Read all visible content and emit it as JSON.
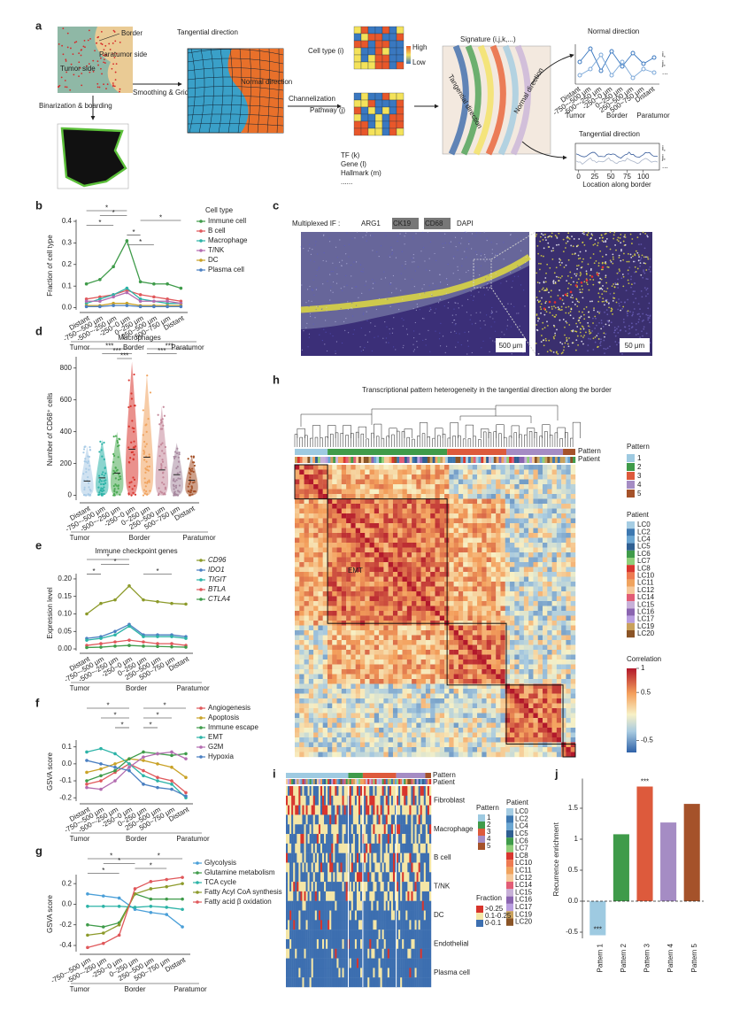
{
  "panel_a": {
    "label": "a",
    "border": "Border",
    "paratumor_side": "Paratumor side",
    "tumor_side": "Tumor side",
    "binarization": "Binarization & boarding",
    "smoothing": "Smoothing & Gridding",
    "tangential": "Tangential direction",
    "normal": "Normal direction",
    "channelization": "Channelization",
    "cell_type": "Cell type (i)",
    "high": "High",
    "low": "Low",
    "pathway": "Pathway (j)",
    "others": [
      "TF (k)",
      "Gene (l)",
      "Hallmark (m)",
      "......"
    ],
    "signature": "Signature (i,j,k,...)",
    "sig_tangential": "Tangential direction",
    "sig_normal": "Normal direction",
    "normal_title": "Normal direction",
    "normal_categories": [
      "Distant",
      "-750~-500 μm",
      "-500~-250 μm",
      "-250~0 μm",
      "0~250 μm",
      "250~500 μm",
      "500~750 μm",
      "Distant"
    ],
    "normal_groups": [
      "Tumor",
      "Border",
      "Paratumor"
    ],
    "normal_legend": [
      "i,",
      "j,",
      "..."
    ],
    "tangential_title": "Tangential direction",
    "tangential_xlim": [
      -5,
      125
    ],
    "tangential_xticks": [
      0,
      25,
      50,
      75,
      100
    ],
    "tangential_xlabel": "Location along border",
    "tangential_legend": [
      "i,",
      "j,",
      "..."
    ]
  },
  "panel_c": {
    "label": "c",
    "prefix": "Multiplexed IF :",
    "stains": [
      {
        "name": "ARG1",
        "color": "#9b4f96"
      },
      {
        "name": "CK19",
        "color": "#ffffff"
      },
      {
        "name": "CD68",
        "color": "#e8e23a"
      },
      {
        "name": "DAPI",
        "color": "#3a4fb8"
      }
    ],
    "scale_main": "500 μm",
    "scale_zoom": "50 μm"
  },
  "panel_h": {
    "label": "h",
    "title": "Transcriptional pattern heterogeneity in the tangential direction along the border",
    "row_pattern": "Pattern",
    "row_patient": "Patient",
    "block_label": "EMT",
    "pattern_title": "Pattern",
    "patterns": [
      "1",
      "2",
      "3",
      "4",
      "5"
    ],
    "pattern_colors": [
      "#9ecae1",
      "#3f9b4a",
      "#dd5a3c",
      "#a58cc4",
      "#a5522a"
    ],
    "patient_title": "Patient",
    "patients": [
      "LC0",
      "LC2",
      "LC4",
      "LC5",
      "LC6",
      "LC7",
      "LC8",
      "LC10",
      "LC11",
      "LC12",
      "LC14",
      "LC15",
      "LC16",
      "LC17",
      "LC19",
      "LC20"
    ],
    "patient_colors": [
      "#a6cde3",
      "#3d78b0",
      "#6aa6d2",
      "#2f5f92",
      "#3f9b4a",
      "#8fcf7a",
      "#d9362f",
      "#ee7b52",
      "#f0a35e",
      "#f6c99a",
      "#e25d76",
      "#c7b0d8",
      "#8a64b0",
      "#b99ee0",
      "#c9a15c",
      "#8a5426"
    ],
    "colorbar_title": "Correlation",
    "colorbar_lim": [
      -0.75,
      1
    ],
    "colorbar_ticks": [
      1,
      0.5,
      -0.5
    ]
  },
  "panel_i": {
    "label": "i",
    "row_pattern": "Pattern",
    "row_patient": "Patient",
    "rows": [
      "Fibroblast",
      "Macrophage",
      "B cell",
      "T/NK",
      "DC",
      "Endothelial",
      "Plasma cell"
    ],
    "pattern_title": "Pattern",
    "patterns": [
      "1",
      "2",
      "3",
      "4",
      "5"
    ],
    "pattern_colors": [
      "#9ecae1",
      "#3f9b4a",
      "#dd5a3c",
      "#a58cc4",
      "#a5522a"
    ],
    "patient_title": "Patient",
    "patients": [
      "LC0",
      "LC2",
      "LC4",
      "LC5",
      "LC6",
      "LC7",
      "LC8",
      "LC10",
      "LC11",
      "LC12",
      "LC14",
      "LC15",
      "LC16",
      "LC17",
      "LC19",
      "LC20"
    ],
    "patient_colors": [
      "#a6cde3",
      "#3d78b0",
      "#6aa6d2",
      "#2f5f92",
      "#3f9b4a",
      "#8fcf7a",
      "#d9362f",
      "#ee7b52",
      "#f0a35e",
      "#f6c99a",
      "#e25d76",
      "#c7b0d8",
      "#8a64b0",
      "#b99ee0",
      "#c9a15c",
      "#8a5426"
    ],
    "fraction_title": "Fraction",
    "fractions": [
      ">0.25",
      "0.1-0.25",
      "0-0.1"
    ],
    "fraction_colors": [
      "#d7342c",
      "#f4e6a6",
      "#3d6fb0"
    ]
  },
  "chart_data": [
    {
      "type": "line",
      "label": "b",
      "ylabel": "Fraction of cell type",
      "legend_title": "Cell type",
      "categories": [
        "Distant",
        "-750~-500 μm",
        "-500~-250 μm",
        "-250~0 μm",
        "0~250 μm",
        "250~500 μm",
        "500~750 μm",
        "Distant"
      ],
      "groups": [
        "Tumor",
        "Border",
        "Paratumor"
      ],
      "series": [
        {
          "name": "Immune cell",
          "color": "#3f9b4a",
          "values": [
            0.11,
            0.13,
            0.19,
            0.31,
            0.12,
            0.11,
            0.11,
            0.09
          ]
        },
        {
          "name": "B cell",
          "color": "#e0585b",
          "values": [
            0.04,
            0.05,
            0.06,
            0.08,
            0.06,
            0.05,
            0.04,
            0.03
          ]
        },
        {
          "name": "Macrophage",
          "color": "#2cb3a7",
          "values": [
            0.02,
            0.04,
            0.06,
            0.09,
            0.04,
            0.03,
            0.02,
            0.02
          ]
        },
        {
          "name": "T/NK",
          "color": "#b36cb0",
          "values": [
            0.03,
            0.03,
            0.05,
            0.07,
            0.03,
            0.03,
            0.03,
            0.02
          ]
        },
        {
          "name": "DC",
          "color": "#c9a227",
          "values": [
            0.01,
            0.01,
            0.02,
            0.02,
            0.01,
            0.01,
            0.01,
            0.01
          ]
        },
        {
          "name": "Plasma cell",
          "color": "#4a7fc1",
          "values": [
            0.005,
            0.005,
            0.01,
            0.01,
            0.005,
            0.005,
            0.005,
            0.005
          ]
        }
      ],
      "ylim": [
        -0.01,
        0.4
      ],
      "yticks": [
        {
          "value": 0,
          "label": "0.0"
        },
        0.1,
        0.2,
        0.3,
        0.4
      ],
      "annotations": [
        "*",
        "*",
        "*",
        "*",
        "*",
        "*"
      ]
    },
    {
      "type": "violin",
      "label": "d",
      "title": "Macrophages",
      "ylabel": "Number of CD68⁺ cells",
      "categories": [
        "Distant",
        "-750~-500 μm",
        "-500~-250 μm",
        "-250~0 μm",
        "0~250 μm",
        "250~500 μm",
        "500~750 μm",
        "Distant"
      ],
      "groups": [
        "Tumor",
        "Border",
        "Paratumor"
      ],
      "colors": [
        "#a9cbe6",
        "#2cb3a7",
        "#4dab55",
        "#d9362f",
        "#f0a35e",
        "#c4889a",
        "#a88aa0",
        "#a5522a"
      ],
      "values": [
        90,
        110,
        140,
        290,
        240,
        160,
        130,
        95
      ],
      "maxima": [
        310,
        350,
        400,
        840,
        760,
        560,
        330,
        250
      ],
      "ylim": [
        -30,
        860
      ],
      "yticks": [
        0,
        200,
        400,
        600,
        800
      ],
      "annotations": [
        "***",
        "***",
        "***",
        "***",
        "***"
      ]
    },
    {
      "type": "line",
      "label": "e",
      "title": "Immune checkpoint genes",
      "ylabel": "Expression level",
      "categories": [
        "Distant",
        "-750~-500 μm",
        "-500~-250 μm",
        "-250~0 μm",
        "0~250 μm",
        "250~500 μm",
        "500~750 μm",
        "Distant"
      ],
      "groups": [
        "Tumor",
        "Border",
        "Paratumor"
      ],
      "series": [
        {
          "name": "CD96",
          "color": "#8c9a2a",
          "values": [
            0.1,
            0.13,
            0.14,
            0.18,
            0.14,
            0.135,
            0.13,
            0.128
          ]
        },
        {
          "name": "IDO1",
          "color": "#4a7fc1",
          "values": [
            0.03,
            0.035,
            0.05,
            0.07,
            0.04,
            0.04,
            0.04,
            0.035
          ]
        },
        {
          "name": "TIGIT",
          "color": "#2cb3a7",
          "values": [
            0.025,
            0.03,
            0.04,
            0.065,
            0.035,
            0.035,
            0.035,
            0.03
          ]
        },
        {
          "name": "BTLA",
          "color": "#e0585b",
          "values": [
            0.01,
            0.015,
            0.02,
            0.025,
            0.02,
            0.015,
            0.015,
            0.01
          ]
        },
        {
          "name": "CTLA4",
          "color": "#3f9b4a",
          "values": [
            0.004,
            0.005,
            0.008,
            0.01,
            0.008,
            0.007,
            0.006,
            0.005
          ]
        }
      ],
      "ylim": [
        -0.005,
        0.21
      ],
      "yticks": [
        {
          "value": 0,
          "label": "0.00"
        },
        {
          "value": 0.05,
          "label": "0.05"
        },
        {
          "value": 0.1,
          "label": "0.10"
        },
        {
          "value": 0.15,
          "label": "0.15"
        },
        {
          "value": 0.2,
          "label": "0.20"
        }
      ],
      "annotations": [
        "*",
        "*",
        "*",
        "*"
      ]
    },
    {
      "type": "line",
      "label": "f",
      "ylabel": "GSVA score",
      "categories": [
        "Distant",
        "-750~-500 μm",
        "-500~-250 μm",
        "-250~0 μm",
        "0~250 μm",
        "250~500 μm",
        "500~750 μm",
        "Distant"
      ],
      "groups": [
        "Tumor",
        "Border",
        "Paratumor"
      ],
      "series": [
        {
          "name": "Angiogenesis",
          "color": "#e0585b",
          "values": [
            -0.12,
            -0.1,
            -0.05,
            0.0,
            -0.04,
            -0.08,
            -0.1,
            -0.17
          ]
        },
        {
          "name": "Apoptosis",
          "color": "#c9a227",
          "values": [
            -0.05,
            -0.03,
            0.0,
            0.03,
            0.02,
            0.0,
            -0.02,
            -0.08
          ]
        },
        {
          "name": "Immune escape",
          "color": "#3f9b4a",
          "values": [
            -0.1,
            -0.07,
            -0.04,
            0.03,
            0.07,
            0.06,
            0.05,
            0.06
          ]
        },
        {
          "name": "EMT",
          "color": "#2cb3a7",
          "values": [
            0.07,
            0.09,
            0.06,
            0.0,
            -0.07,
            -0.1,
            -0.12,
            -0.2
          ]
        },
        {
          "name": "G2M",
          "color": "#b36cb0",
          "values": [
            -0.14,
            -0.15,
            -0.1,
            -0.02,
            0.04,
            0.06,
            0.07,
            0.03
          ]
        },
        {
          "name": "Hypoxia",
          "color": "#4a7fc1",
          "values": [
            0.02,
            0.0,
            -0.02,
            -0.04,
            -0.12,
            -0.14,
            -0.15,
            -0.19
          ]
        }
      ],
      "ylim": [
        -0.22,
        0.13
      ],
      "yticks": [
        -0.2,
        -0.1,
        {
          "value": 0,
          "label": "0.0"
        },
        0.1
      ],
      "annotations": [
        "*",
        "*",
        "*",
        "*",
        "*",
        "*"
      ]
    },
    {
      "type": "line",
      "label": "g",
      "ylabel": "GSVA score",
      "categories": [
        "-750~-500 μm",
        "-500~-250 μm",
        "-250~0 μm",
        "0~250 μm",
        "250~500 μm",
        "500~750 μm",
        "Distant"
      ],
      "groups": [
        "Tumor",
        "Border",
        "Paratumor"
      ],
      "series": [
        {
          "name": "Glycolysis",
          "color": "#4a9fd8",
          "values": [
            0.1,
            0.08,
            0.06,
            -0.05,
            -0.08,
            -0.1,
            -0.22
          ]
        },
        {
          "name": "Glutamine metabolism",
          "color": "#3f9b4a",
          "values": [
            -0.2,
            -0.22,
            -0.18,
            0.1,
            0.05,
            0.05,
            0.05
          ]
        },
        {
          "name": "TCA cycle",
          "color": "#2cb3a7",
          "values": [
            -0.02,
            -0.02,
            -0.02,
            -0.03,
            -0.02,
            -0.03,
            -0.05
          ]
        },
        {
          "name": "Fatty Acyl CoA synthesis",
          "color": "#8c9a2a",
          "values": [
            -0.3,
            -0.28,
            -0.2,
            0.1,
            0.15,
            0.17,
            0.2
          ]
        },
        {
          "name": "Fatty acid β oxidation",
          "color": "#e0585b",
          "values": [
            -0.42,
            -0.38,
            -0.3,
            0.15,
            0.22,
            0.24,
            0.26
          ]
        }
      ],
      "ylim": [
        -0.46,
        0.27
      ],
      "yticks": [
        -0.4,
        -0.2,
        {
          "value": 0,
          "label": "0.0"
        },
        0.2
      ],
      "annotations": [
        "*",
        "*",
        "*",
        "*",
        "*"
      ]
    },
    {
      "type": "bar",
      "label": "j",
      "ylabel": "Recurrence enrichment",
      "categories": [
        "Pattern 1",
        "Pattern 2",
        "Pattern 3",
        "Pattern 4",
        "Pattern 5"
      ],
      "values": [
        -0.55,
        1.08,
        1.85,
        1.27,
        1.57
      ],
      "colors": [
        "#9ecae1",
        "#3f9b4a",
        "#dd5a3c",
        "#a58cc4",
        "#a5522a"
      ],
      "ylim": [
        -0.6,
        1.95
      ],
      "yticks": [
        -0.5,
        {
          "value": 0,
          "label": "0.0"
        },
        0.5,
        1,
        1.5
      ],
      "annotations": [
        "***",
        "***"
      ]
    }
  ]
}
